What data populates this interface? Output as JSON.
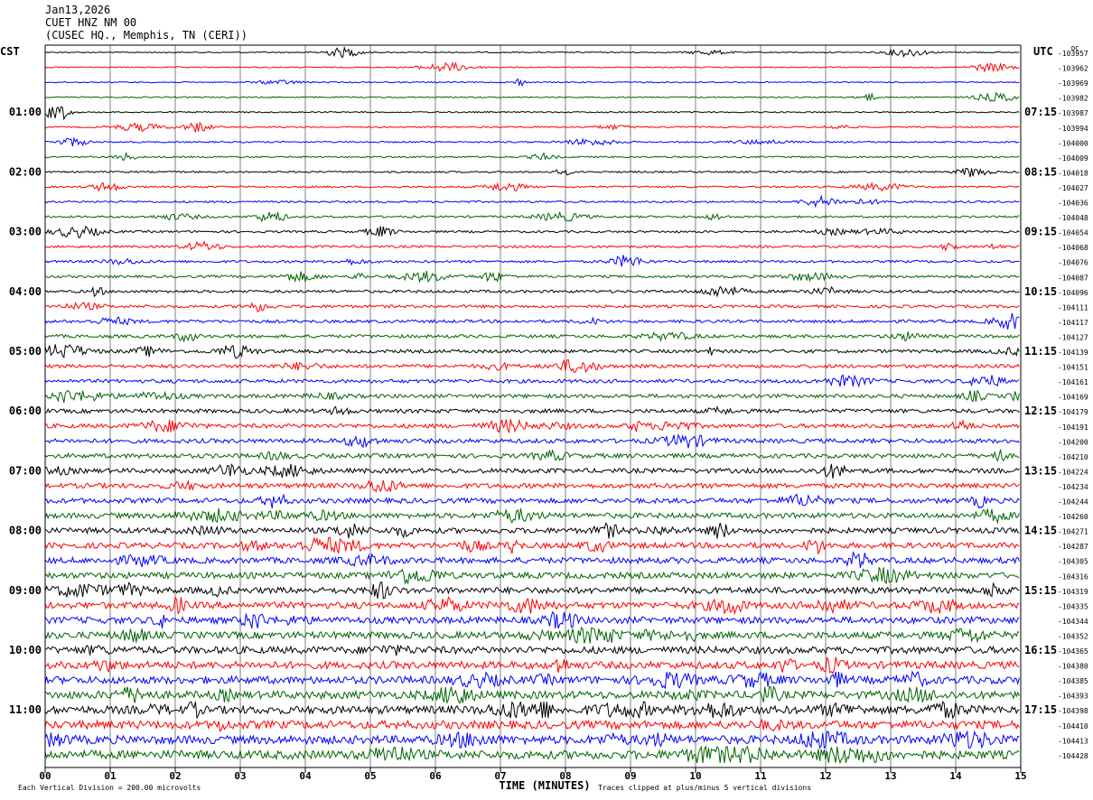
{
  "header": {
    "date": "Jan13,2026",
    "station": "CUET HNZ NM 00",
    "location": "(CUSEC HQ., Memphis, TN (CERI))"
  },
  "chart_data": {
    "type": "line",
    "title": "CUET HNZ NM 00",
    "xlabel": "TIME (MINUTES)",
    "x_ticks": [
      "00",
      "01",
      "02",
      "03",
      "04",
      "05",
      "06",
      "07",
      "08",
      "09",
      "10",
      "11",
      "12",
      "13",
      "14",
      "15"
    ],
    "xlim": [
      0,
      15
    ],
    "left_axis_label": "CST",
    "right_axis_label": "UTC",
    "right_corner_label": "DC",
    "left_hour_labels": [
      "01:00",
      "02:00",
      "03:00",
      "04:00",
      "05:00",
      "06:00",
      "07:00",
      "08:00",
      "09:00",
      "10:00",
      "11:00"
    ],
    "right_hour_labels": [
      "07:15",
      "08:15",
      "09:15",
      "10:15",
      "11:15",
      "12:15",
      "13:15",
      "14:15",
      "15:15",
      "16:15",
      "17:15"
    ],
    "trace_colors": [
      "#000000",
      "#ff0000",
      "#0000ff",
      "#006400"
    ],
    "trace_count": 48,
    "dc_offsets": [
      "-103957",
      "-103962",
      "-103969",
      "-103982",
      "-103987",
      "-103994",
      "-104000",
      "-104009",
      "-104018",
      "-104027",
      "-104036",
      "-104048",
      "-104054",
      "-104068",
      "-104076",
      "-104087",
      "-104096",
      "-104111",
      "-104117",
      "-104127",
      "-104139",
      "-104151",
      "-104161",
      "-104169",
      "-104179",
      "-104191",
      "-104200",
      "-104210",
      "-104224",
      "-104234",
      "-104244",
      "-104260",
      "-104271",
      "-104287",
      "-104305",
      "-104316",
      "-104319",
      "-104335",
      "-104344",
      "-104352",
      "-104365",
      "-104380",
      "-104385",
      "-104393",
      "-104398",
      "-104410",
      "-104413",
      "-104428"
    ],
    "footer_left": "Each Vertical Division =  200.00 microvolts",
    "footer_right": "Traces clipped at plus/minus 5 vertical divisions",
    "grid": true
  }
}
